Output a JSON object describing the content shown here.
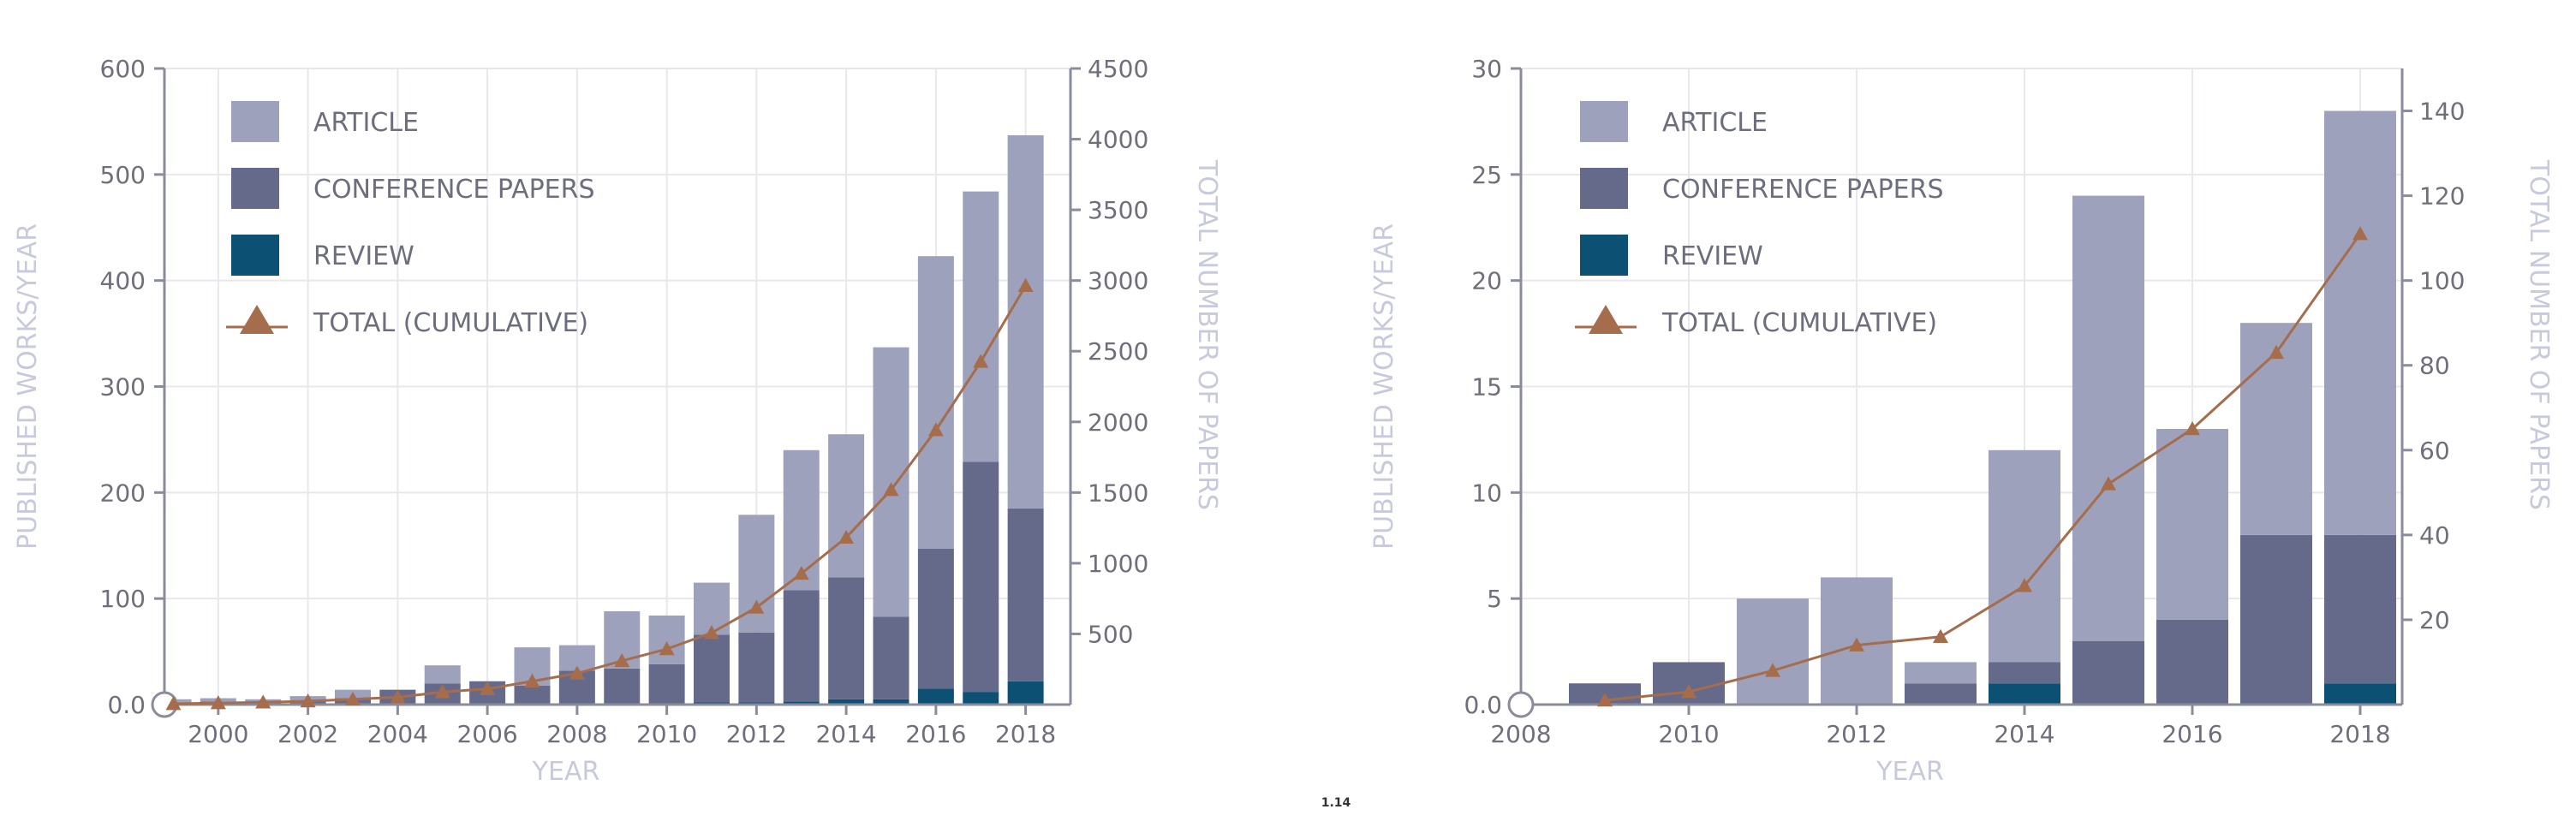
{
  "page_number": "1.14",
  "colors": {
    "article": "#9ea1bb",
    "conference": "#656a8b",
    "review": "#0c5174",
    "total": "#a56d4c",
    "axis": "#8a8c9c",
    "grid": "#e7e7ee",
    "title": "#c7c9dc"
  },
  "legend": {
    "article": "ARTICLE",
    "conference": "CONFERENCE PAPERS",
    "review": "REVIEW",
    "total": "TOTAL (CUMULATIVE)"
  },
  "chart_data": [
    {
      "type": "bar",
      "stacked": true,
      "title": "",
      "xlabel": "YEAR",
      "ylabel": "PUBLISHED WORKS/YEAR",
      "y2label": "TOTAL NUMBER OF PAPERS",
      "x_range": [
        1998.8,
        2019.0
      ],
      "ylim": [
        0,
        600
      ],
      "y2lim": [
        0,
        4500
      ],
      "y_ticks": [
        {
          "v": 0,
          "label": "0.0"
        },
        {
          "v": 100,
          "label": "100"
        },
        {
          "v": 200,
          "label": "200"
        },
        {
          "v": 300,
          "label": "300"
        },
        {
          "v": 400,
          "label": "400"
        },
        {
          "v": 500,
          "label": "500"
        },
        {
          "v": 600,
          "label": "600"
        }
      ],
      "y2_ticks": [
        {
          "v": 500,
          "label": "500"
        },
        {
          "v": 1000,
          "label": "1000"
        },
        {
          "v": 1500,
          "label": "1500"
        },
        {
          "v": 2000,
          "label": "2000"
        },
        {
          "v": 2500,
          "label": "2500"
        },
        {
          "v": 3000,
          "label": "3000"
        },
        {
          "v": 3500,
          "label": "3500"
        },
        {
          "v": 4000,
          "label": "4000"
        },
        {
          "v": 4500,
          "label": "4500"
        }
      ],
      "x_ticks": [
        {
          "v": 2000,
          "label": "2000"
        },
        {
          "v": 2002,
          "label": "2002"
        },
        {
          "v": 2004,
          "label": "2004"
        },
        {
          "v": 2006,
          "label": "2006"
        },
        {
          "v": 2008,
          "label": "2008"
        },
        {
          "v": 2010,
          "label": "2010"
        },
        {
          "v": 2012,
          "label": "2012"
        },
        {
          "v": 2014,
          "label": "2014"
        },
        {
          "v": 2016,
          "label": "2016"
        },
        {
          "v": 2018,
          "label": "2018"
        }
      ],
      "categories": [
        1999,
        2000,
        2001,
        2002,
        2003,
        2004,
        2005,
        2006,
        2007,
        2008,
        2009,
        2010,
        2011,
        2012,
        2013,
        2014,
        2015,
        2016,
        2017,
        2018
      ],
      "series": [
        {
          "name": "REVIEW",
          "key": "review",
          "values": [
            0,
            0,
            0,
            0,
            0,
            0,
            0,
            0,
            0,
            0,
            0,
            0,
            2,
            2,
            3,
            5,
            5,
            15,
            12,
            22
          ]
        },
        {
          "name": "CONFERENCE PAPERS",
          "key": "conference",
          "values": [
            2,
            3,
            2,
            4,
            6,
            14,
            20,
            22,
            18,
            32,
            34,
            38,
            64,
            66,
            105,
            115,
            78,
            132,
            217,
            163
          ]
        },
        {
          "name": "ARTICLE",
          "key": "article",
          "values": [
            3,
            3,
            3,
            4,
            8,
            0,
            17,
            0,
            36,
            24,
            54,
            46,
            49,
            111,
            132,
            135,
            254,
            276,
            255,
            352
          ]
        }
      ],
      "line": {
        "name": "TOTAL (CUMULATIVE)",
        "axis": "right",
        "values": [
          5,
          11,
          16,
          24,
          38,
          52,
          89,
          111,
          165,
          221,
          309,
          393,
          508,
          687,
          927,
          1182,
          1519,
          1942,
          2426,
          2963
        ]
      }
    },
    {
      "type": "bar",
      "stacked": true,
      "title": "",
      "xlabel": "YEAR",
      "ylabel": "PUBLISHED WORKS/YEAR",
      "y2label": "TOTAL NUMBER OF PAPERS",
      "x_range": [
        2008.0,
        2018.5
      ],
      "ylim": [
        0,
        30
      ],
      "y2lim": [
        0,
        150
      ],
      "y_ticks": [
        {
          "v": 0,
          "label": "0.0"
        },
        {
          "v": 5,
          "label": "5"
        },
        {
          "v": 10,
          "label": "10"
        },
        {
          "v": 15,
          "label": "15"
        },
        {
          "v": 20,
          "label": "20"
        },
        {
          "v": 25,
          "label": "25"
        },
        {
          "v": 30,
          "label": "30"
        }
      ],
      "y2_ticks": [
        {
          "v": 20,
          "label": "20"
        },
        {
          "v": 40,
          "label": "40"
        },
        {
          "v": 60,
          "label": "60"
        },
        {
          "v": 80,
          "label": "80"
        },
        {
          "v": 100,
          "label": "100"
        },
        {
          "v": 120,
          "label": "120"
        },
        {
          "v": 140,
          "label": "140"
        }
      ],
      "x_ticks": [
        {
          "v": 2008,
          "label": "2008"
        },
        {
          "v": 2010,
          "label": "2010"
        },
        {
          "v": 2012,
          "label": "2012"
        },
        {
          "v": 2014,
          "label": "2014"
        },
        {
          "v": 2016,
          "label": "2016"
        },
        {
          "v": 2018,
          "label": "2018"
        }
      ],
      "categories": [
        2009,
        2010,
        2011,
        2012,
        2013,
        2014,
        2015,
        2016,
        2017,
        2018
      ],
      "series": [
        {
          "name": "REVIEW",
          "key": "review",
          "values": [
            0,
            0,
            0,
            0,
            0,
            1,
            0,
            0,
            0,
            1
          ]
        },
        {
          "name": "CONFERENCE PAPERS",
          "key": "conference",
          "values": [
            1,
            2,
            0,
            0,
            1,
            1,
            3,
            4,
            8,
            7
          ]
        },
        {
          "name": "ARTICLE",
          "key": "article",
          "values": [
            0,
            0,
            5,
            6,
            1,
            10,
            21,
            9,
            10,
            20
          ]
        }
      ],
      "line": {
        "name": "TOTAL (CUMULATIVE)",
        "axis": "right",
        "values": [
          1,
          3,
          8,
          14,
          16,
          28,
          52,
          65,
          83,
          111
        ]
      }
    }
  ]
}
